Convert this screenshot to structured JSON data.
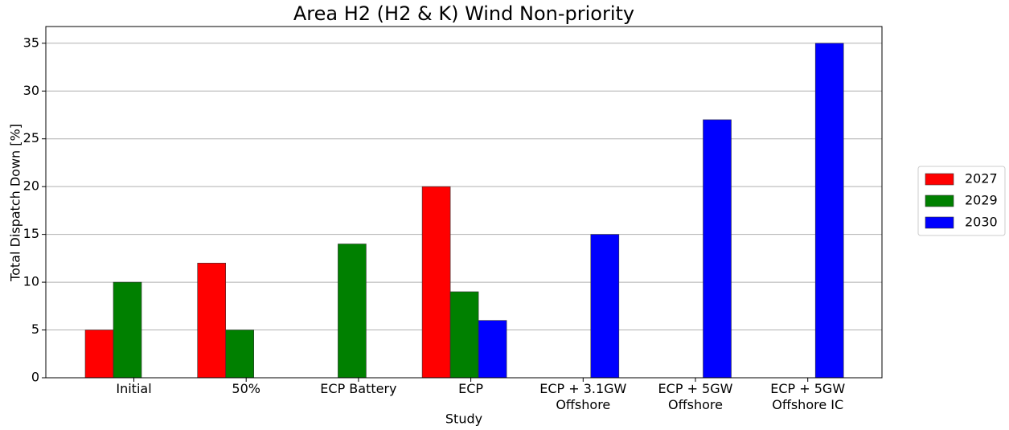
{
  "chart_data": {
    "type": "bar",
    "title": "Area H2 (H2 & K) Wind Non-priority",
    "xlabel": "Study",
    "ylabel": "Total Dispatch Down [%]",
    "categories": [
      "Initial",
      "50%",
      "ECP Battery",
      "ECP",
      "ECP + 3.1GW\nOffshore",
      "ECP + 5GW\nOffshore",
      "ECP + 5GW\nOffshore IC"
    ],
    "series": [
      {
        "name": "2027",
        "color": "#ff0000",
        "values": [
          5,
          12,
          null,
          20,
          null,
          null,
          null
        ]
      },
      {
        "name": "2029",
        "color": "#008000",
        "values": [
          10,
          5,
          14,
          9,
          null,
          null,
          null
        ]
      },
      {
        "name": "2030",
        "color": "#0000ff",
        "values": [
          null,
          null,
          null,
          6,
          15,
          27,
          35
        ]
      }
    ],
    "ylim": [
      0,
      36.75
    ],
    "yticks": [
      0,
      5,
      10,
      15,
      20,
      25,
      30,
      35
    ],
    "grid": true,
    "legend": "right"
  }
}
